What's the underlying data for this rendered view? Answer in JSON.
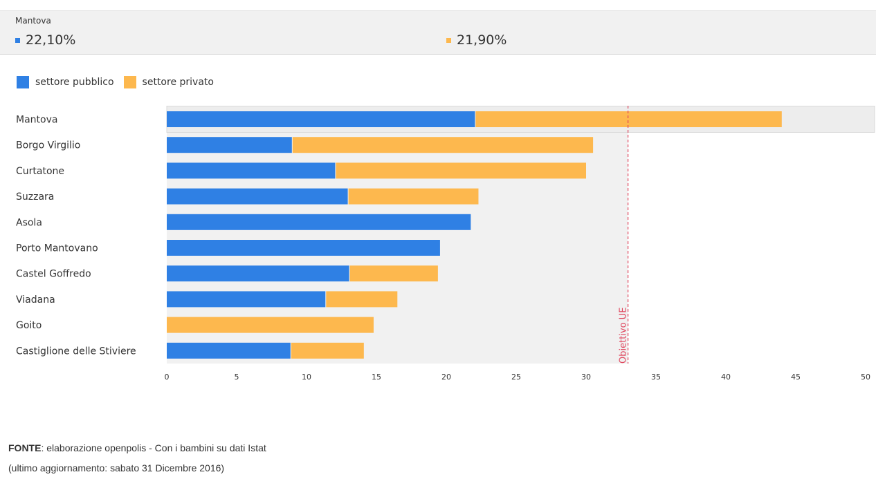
{
  "summary": {
    "title": "Mantova",
    "public_value": "22,10%",
    "private_value": "21,90%"
  },
  "legend": {
    "public_label": "settore pubblico",
    "private_label": "settore privato"
  },
  "colors": {
    "public": "#2f80e4",
    "private": "#fdb84e",
    "reference": "#e0435b",
    "highlight_band": "#ededed",
    "plot_background": "#f1f1f1"
  },
  "chart_data": {
    "type": "bar",
    "orientation": "horizontal",
    "stacked": true,
    "categories": [
      "Mantova",
      "Borgo Virgilio",
      "Curtatone",
      "Suzzara",
      "Asola",
      "Porto Mantovano",
      "Castel Goffredo",
      "Viadana",
      "Goito",
      "Castiglione delle Stiviere"
    ],
    "series": [
      {
        "name": "settore pubblico",
        "values": [
          22.1,
          9.0,
          12.1,
          13.0,
          21.8,
          19.6,
          13.1,
          11.4,
          0,
          8.9
        ]
      },
      {
        "name": "settore privato",
        "values": [
          21.9,
          21.5,
          17.9,
          9.3,
          0,
          0,
          6.3,
          5.1,
          14.8,
          5.2
        ]
      }
    ],
    "highlighted_category": "Mantova",
    "reference_line": {
      "value": 33,
      "label": "Obiettivo UE"
    },
    "x_ticks": [
      "0",
      "5",
      "10",
      "15",
      "20",
      "25",
      "30",
      "35",
      "40",
      "45",
      "50"
    ],
    "xlim": [
      0,
      50
    ],
    "grid": false,
    "legend_position": "top-left"
  },
  "footer": {
    "source_label": "FONTE",
    "source_text": ": elaborazione openpolis - Con i bambini su dati Istat",
    "updated_text": "(ultimo aggiornamento: sabato 31 Dicembre 2016)"
  }
}
